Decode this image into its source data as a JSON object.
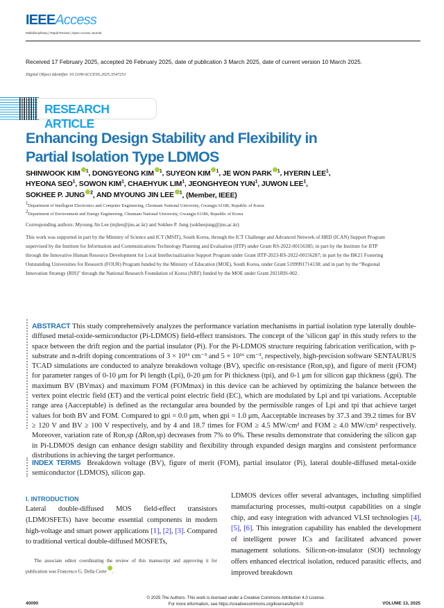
{
  "header": {
    "logo_bold": "IEEE",
    "logo_italic": "Access",
    "tagline": "Multidisciplinary | Rapid Review | Open Access Journal"
  },
  "received": "Received 17 February 2025, accepted 26 February 2025, date of publication 3 March 2025, date of current version 10 March 2025.",
  "doi": "Digital Object Identifier 10.1109/ACCESS.2025.3547251",
  "article_type": "RESEARCH ARTICLE",
  "title": {
    "line1": "Enhancing Design Stability and Flexibility in",
    "line2": "Partial Isolation Type LDMOS"
  },
  "authors": [
    {
      "name": "SHINWOOK KIM",
      "aff": "1",
      "orcid": true
    },
    {
      "name": "DONGYEONG KIM",
      "aff": "1",
      "orcid": true
    },
    {
      "name": "SUYEON KIM",
      "aff": "1",
      "orcid": true
    },
    {
      "name": "JE WON PARK",
      "aff": "1",
      "orcid": true
    },
    {
      "name": "HYERIN LEE",
      "aff": "1"
    },
    {
      "name": "HYEONA SEO",
      "aff": "1"
    },
    {
      "name": "SOWON KIM",
      "aff": "1"
    },
    {
      "name": "CHAEHYUK LIM",
      "aff": "1"
    },
    {
      "name": "JEONGHYEON YUN",
      "aff": "1"
    },
    {
      "name": "JUWON LEE",
      "aff": "1"
    },
    {
      "name": "SOKHEE P. JUNG",
      "aff": "2",
      "orcid": true
    },
    {
      "name": "AND MYOUNG JIN LEE",
      "aff": "1",
      "orcid": true
    }
  ],
  "member": "(Member, IEEE)",
  "affiliations": [
    {
      "num": "1",
      "text": "Department of Intelligent Electronics and Computer Engineering, Chonnam National University, Gwangju 61186, Republic of Korea"
    },
    {
      "num": "2",
      "text": "Department of Environment and Energy Engineering, Chonnam National University, Gwangju 61186, Republic of Korea"
    }
  ],
  "corresponding": "Corresponding authors: Myoung Jin Lee (mjlee@jnu.ac.kr) and Sokhee P. Jung (sokheejung@jnu.ac.kr)",
  "funding": "This work was supported in part by the Ministry of Science and ICT (MSIT), South Korea, through the ICT Challenge and Advanced Network of HRD (ICAN) Support Program supervised by the Institute for Information and Communications Technology Planning and Evaluation (IITP) under Grant RS-2022-00156385; in part by the Institute for IITP through the Innovative Human Resource Development for Local Intellectualization Support Program under Grant IITP-2023-RS-2022-00156287; in part by the BK21 Fostering Outstanding Universities for Research (FOUR) Program funded by the Ministry of Education (MOE), South Korea, under Grant 5199991714138; and in part by the “Regional Innovation Strategy (RIS)” through the National Research Foundation of Korea (NRF) funded by the MOE under Grant 2021RIS-002.",
  "abstract": {
    "label": "ABSTRACT",
    "text": "This study comprehensively analyzes the performance variation mechanisms in partial isolation type laterally double-diffused metal-oxide-semiconductor (Pi-LDMOS) field-effect transistors. The concept of the 'silicon gap' in this study refers to the space between the drift region and the partial insulator (Pi). For the Pi-LDMOS structure requiring fabrication verification, with p-substrate and n-drift doping concentrations of 3 × 10¹⁶ cm⁻³ and 5 × 10¹⁶ cm⁻³, respectively, high-precision software SENTAURUS TCAD simulations are conducted to analyze breakdown voltage (BV), specific on-resistance (Ron,sp), and figure of merit (FOM) for parameter ranges of 0-10 μm for Pi length (Lpi), 0-20 μm for Pi thickness (tpi), and 0-1 μm for silicon gap thickness (gpi). The maximum BV (BVmax) and maximum FOM (FOMmax) in this device can be achieved by optimizing the balance between the vertex point electric field (ET) and the vertical point electric field (EC), which are modulated by Lpi and tpi variations. Acceptable range area (Aacceptable) is defined as the rectangular area bounded by the permissible ranges of Lpi and tpi that achieve target values for both BV and FOM. Compared to gpi = 0.0 μm, when gpi = 1.0 μm, Aacceptable increases by 37.3 and 39.2 times for BV ≥ 120 V and BV ≥ 100 V respectively, and by 4 and 18.7 times for FOM ≥ 4.5 MW/cm² and FOM ≥ 4.0 MW/cm² respectively. Moreover, variation rate of Ron,sp (ΔRon,sp) decreases from 7% to 0%. These results demonstrate that considering the silicon gap in Pi-LDMOS design can enhance design stability and flexibility through expanded design margins and consistent performance distributions in achieving the target performance."
  },
  "index_terms": {
    "label": "INDEX TERMS",
    "text": "Breakdown voltage (BV), figure of merit (FOM), partial insulator (Pi), lateral double-diffused metal-oxide semiconductor (LDMOS), silicon gap."
  },
  "intro": {
    "heading": "I. INTRODUCTION",
    "left_a": "Lateral double-diffused MOS field-effect transistors (LDMOSFETs) have become essential components in modern high-voltage and smart power applications ",
    "left_refs": [
      "[1]",
      "[2]",
      "[3]"
    ],
    "left_b": ". Compared to traditional vertical double-diffused MOSFETs,",
    "right_a": "LDMOS devices offer several advantages, including simplified manufacturing processes, multi-output capabilities on a single chip, and easy integration with advanced VLSI technologies ",
    "right_refs": [
      "[4]",
      "[5]",
      "[6]"
    ],
    "right_b": ". This integration capability has enabled the development of intelligent power ICs and facilitated advanced power management solutions. Silicon-on-insulator (SOI) technology offers enhanced electrical isolation, reduced parasitic effects, and improved breakdown"
  },
  "footnote": "The associate editor coordinating the review of this manuscript and approving it for publication was Francesco G. Della Corte",
  "footer": {
    "page": "40090",
    "license_line1": "© 2025 The Authors. This work is licensed under a Creative Commons Attribution 4.0 License.",
    "license_line2": "For more information, see https://creativecommons.org/licenses/by/4.0/",
    "volume": "VOLUME 13, 2025"
  },
  "colors": {
    "title_blue": "#1f74b4",
    "banner_blue": "#1aa3e8",
    "orcid_green": "#a6ce39",
    "link": "#2a2af0"
  }
}
